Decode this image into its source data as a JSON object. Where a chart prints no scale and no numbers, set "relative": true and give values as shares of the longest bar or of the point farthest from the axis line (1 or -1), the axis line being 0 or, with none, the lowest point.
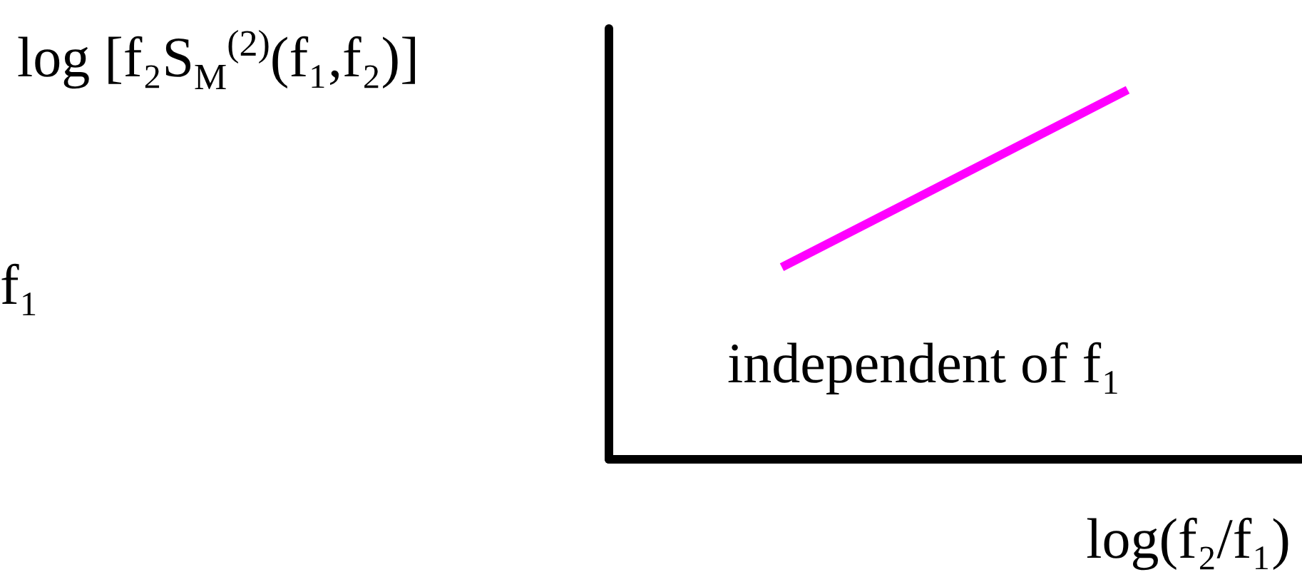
{
  "chart_data": {
    "type": "line",
    "relative": true,
    "ylabel": "log [f₂S$_{M}$$^{(2)}$(f₁,f₂)]",
    "xlabel": "log(f₂/f₁)",
    "categories": [
      null,
      null
    ],
    "series": [
      {
        "color": "#ff00ff",
        "values": [
          0.52,
          1
        ]
      }
    ],
    "annotations": [
      "f₁",
      "independent of f₁"
    ],
    "grid": false,
    "marker": "none",
    "line_style": "solid"
  }
}
